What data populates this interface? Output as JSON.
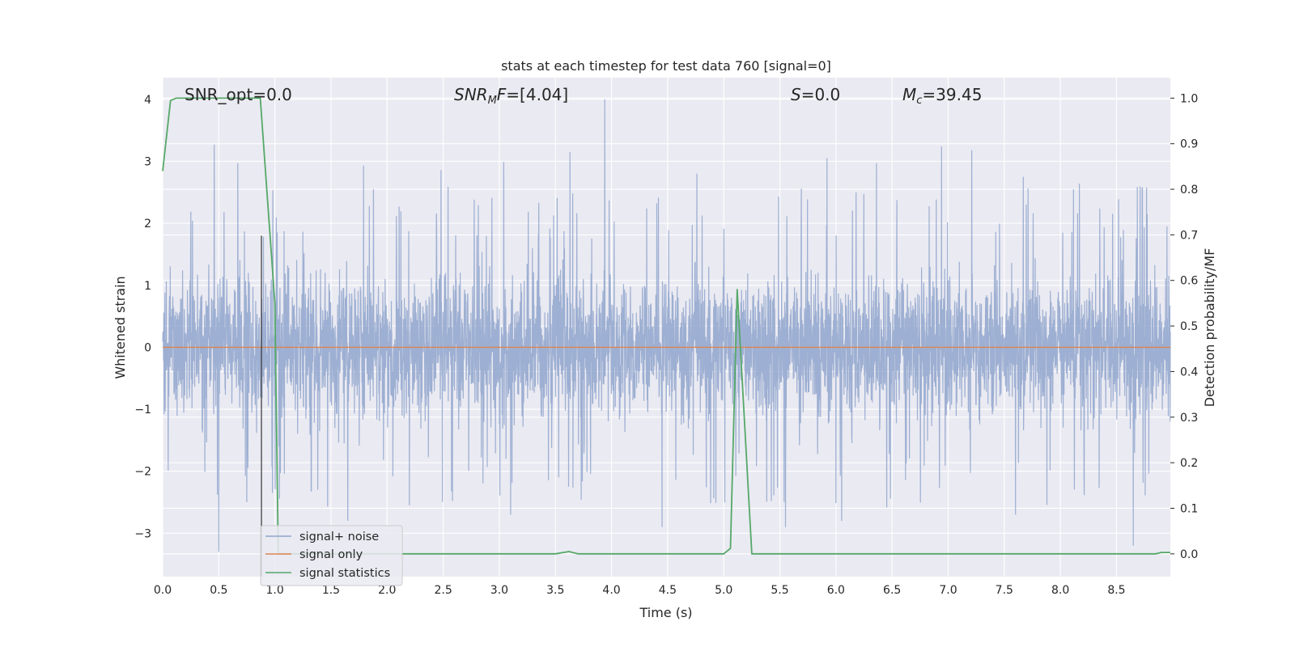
{
  "chart_data": {
    "type": "line",
    "title": "stats at each timestep for test data 760 [signal=0]",
    "xlabel": "Time (s)",
    "ylabel_left": "Whitened strain",
    "ylabel_right": "Detection probability/MF",
    "xlim": [
      0.0,
      8.98
    ],
    "ylim_left": [
      -3.7,
      4.35
    ],
    "ylim_right": [
      -0.05,
      1.045
    ],
    "x_ticks": [
      "0.0",
      "0.5",
      "1.0",
      "1.5",
      "2.0",
      "2.5",
      "3.0",
      "3.5",
      "4.0",
      "4.5",
      "5.0",
      "5.5",
      "6.0",
      "6.5",
      "7.0",
      "7.5",
      "8.0",
      "8.5"
    ],
    "y_left_ticks": [
      "−3",
      "−2",
      "−1",
      "0",
      "1",
      "2",
      "3",
      "4"
    ],
    "y_right_ticks": [
      "0.0",
      "0.1",
      "0.2",
      "0.3",
      "0.4",
      "0.5",
      "0.6",
      "0.7",
      "0.8",
      "0.9",
      "1.0"
    ],
    "grid": true,
    "legend_position": "lower-left",
    "annotations": [
      {
        "label": "SNR_opt=0.0",
        "x": 0.2,
        "y": 4.1
      },
      {
        "label": "SNR_MF=[4.04]",
        "x": 2.6,
        "y": 4.1
      },
      {
        "label": "S=0.0",
        "x": 5.6,
        "y": 4.1
      },
      {
        "label": "M_c=39.45",
        "x": 6.6,
        "y": 4.1
      }
    ],
    "vline_x": 0.88,
    "series": [
      {
        "name": "signal+ noise",
        "axis": "left",
        "color": "#8fa5cd",
        "description_range": [
          -3.3,
          4.0
        ],
        "peaks": [
          [
            0.46,
            3.27
          ],
          [
            0.67,
            2.97
          ],
          [
            1.79,
            2.93
          ],
          [
            2.48,
            2.86
          ],
          [
            3.04,
            2.99
          ],
          [
            3.63,
            3.15
          ],
          [
            3.94,
            4.0
          ],
          [
            4.76,
            2.8
          ],
          [
            5.49,
            2.43
          ],
          [
            5.92,
            3.05
          ],
          [
            6.36,
            2.97
          ],
          [
            6.94,
            3.24
          ],
          [
            7.21,
            3.18
          ],
          [
            7.67,
            2.75
          ],
          [
            8.17,
            2.64
          ],
          [
            8.73,
            2.57
          ]
        ],
        "troughs": [
          [
            0.5,
            -3.3
          ],
          [
            0.75,
            -2.5
          ],
          [
            1.65,
            -2.8
          ],
          [
            3.1,
            -2.7
          ],
          [
            4.45,
            -2.9
          ],
          [
            5.55,
            -2.9
          ],
          [
            6.05,
            -2.8
          ],
          [
            7.6,
            -2.7
          ],
          [
            8.65,
            -3.2
          ]
        ]
      },
      {
        "name": "signal only",
        "axis": "left",
        "color": "#dd8452",
        "x": [
          0.0,
          8.98
        ],
        "y": [
          0.0,
          0.0
        ]
      },
      {
        "name": "signal statistics",
        "axis": "right",
        "color": "#55a868",
        "x": [
          0.0,
          0.07,
          0.12,
          0.2,
          0.4,
          0.6,
          0.87,
          1.0,
          1.03,
          1.2,
          2.0,
          3.0,
          3.5,
          3.62,
          3.7,
          4.0,
          4.5,
          5.0,
          5.06,
          5.12,
          5.25,
          6.0,
          7.0,
          8.0,
          8.85,
          8.9,
          8.98
        ],
        "y": [
          0.84,
          0.995,
          1.0,
          1.0,
          1.0,
          1.0,
          1.0,
          0.55,
          0.0,
          0.0,
          0.0,
          0.0,
          0.0,
          0.005,
          0.0,
          0.0,
          0.0,
          0.0,
          0.012,
          0.58,
          0.0,
          0.0,
          0.0,
          0.0,
          0.0,
          0.003,
          0.003
        ]
      }
    ]
  }
}
